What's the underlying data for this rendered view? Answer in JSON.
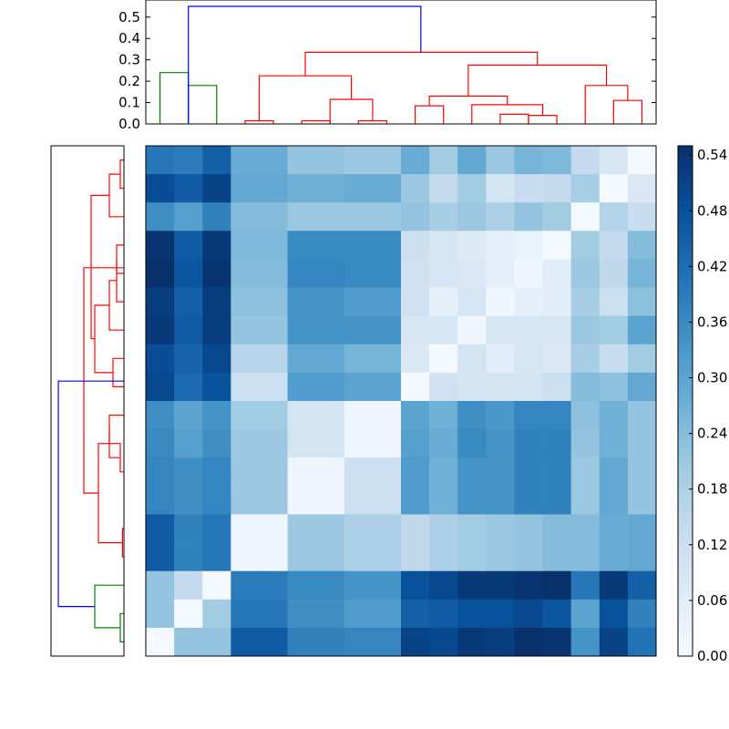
{
  "chart_data": {
    "type": "heatmap",
    "n": 18,
    "colormap": "Blues",
    "grid": false,
    "top_dendrogram": {
      "yticks": [
        "0.0",
        "0.1",
        "0.2",
        "0.3",
        "0.4",
        "0.5"
      ],
      "ylim": [
        0,
        0.58
      ],
      "links": [
        {
          "x": [
            1,
            2
          ],
          "h": 0.24,
          "color": "#008000"
        },
        {
          "x": [
            2,
            3
          ],
          "h": 0.18,
          "color": "#008000"
        },
        {
          "x": [
            4,
            5
          ],
          "h": 0.015,
          "color": "#ff0000"
        },
        {
          "x": [
            6,
            7
          ],
          "h": 0.015,
          "color": "#ff0000"
        },
        {
          "x": [
            8,
            9
          ],
          "h": 0.015,
          "color": "#ff0000"
        },
        {
          "x": [
            7,
            8.5
          ],
          "h": 0.115,
          "color": "#ff0000"
        },
        {
          "x": [
            4.5,
            7.75
          ],
          "h": 0.225,
          "color": "#ff0000"
        },
        {
          "x": [
            10,
            11
          ],
          "h": 0.085,
          "color": "#ff0000"
        },
        {
          "x": [
            13,
            14
          ],
          "h": 0.045,
          "color": "#ff0000"
        },
        {
          "x": [
            14,
            15
          ],
          "h": 0.04,
          "color": "#ff0000"
        },
        {
          "x": [
            12,
            14.5
          ],
          "h": 0.09,
          "color": "#ff0000"
        },
        {
          "x": [
            10.5,
            13.25
          ],
          "h": 0.13,
          "color": "#ff0000"
        },
        {
          "x": [
            17,
            18
          ],
          "h": 0.11,
          "color": "#ff0000"
        },
        {
          "x": [
            16,
            17.5
          ],
          "h": 0.18,
          "color": "#ff0000"
        },
        {
          "x": [
            11.875,
            16.75
          ],
          "h": 0.275,
          "color": "#ff0000"
        },
        {
          "x": [
            6.125,
            14.3125
          ],
          "h": 0.335,
          "color": "#ff0000"
        },
        {
          "x": [
            2,
            10.2
          ],
          "h": 0.55,
          "color": "#0000ff"
        }
      ]
    },
    "left_dendrogram": {
      "links": [
        {
          "y": [
            18,
            17
          ],
          "h": 0.005,
          "color": "#008000"
        },
        {
          "y": [
            17.5,
            16
          ],
          "h": 0.04,
          "color": "#008000"
        },
        {
          "y": [
            1,
            2
          ],
          "h": 0.005,
          "color": "#ff0000"
        },
        {
          "y": [
            1.5,
            3
          ],
          "h": 0.02,
          "color": "#ff0000"
        },
        {
          "y": [
            4,
            5
          ],
          "h": 0.01,
          "color": "#ff0000"
        },
        {
          "y": [
            4.5,
            6
          ],
          "h": 0.01,
          "color": "#ff0000"
        },
        {
          "y": [
            5.25,
            7
          ],
          "h": 0.02,
          "color": "#ff0000"
        },
        {
          "y": [
            8,
            9
          ],
          "h": 0.015,
          "color": "#ff0000"
        },
        {
          "y": [
            6.125,
            8.5
          ],
          "h": 0.04,
          "color": "#ff0000"
        },
        {
          "y": [
            2.25,
            7.3
          ],
          "h": 0.045,
          "color": "#ff0000"
        },
        {
          "y": [
            10,
            11
          ],
          "h": 0.02,
          "color": "#ff0000"
        },
        {
          "y": [
            11,
            12
          ],
          "h": 0.005,
          "color": "#ff0000"
        },
        {
          "y": [
            10.5,
            11.5
          ],
          "h": 0.02,
          "color": "#ff0000"
        },
        {
          "y": [
            14,
            15
          ],
          "h": 0.002,
          "color": "#ff0000"
        },
        {
          "y": [
            11,
            14.5
          ],
          "h": 0.035,
          "color": "#ff0000"
        },
        {
          "y": [
            4.8,
            12.75
          ],
          "h": 0.055,
          "color": "#ff0000"
        },
        {
          "y": [
            8.8,
            16.75
          ],
          "h": 0.09,
          "color": "#0000ff"
        }
      ]
    },
    "colorbar": {
      "ticks": [
        "0.00",
        "0.06",
        "0.12",
        "0.18",
        "0.24",
        "0.30",
        "0.36",
        "0.42",
        "0.48",
        "0.54"
      ],
      "range": [
        0,
        0.55
      ]
    },
    "matrix": [
      [
        0.4,
        0.39,
        0.45,
        0.28,
        0.28,
        0.22,
        0.22,
        0.21,
        0.21,
        0.28,
        0.2,
        0.29,
        0.21,
        0.26,
        0.25,
        0.14,
        0.09,
        0.01
      ],
      [
        0.49,
        0.46,
        0.51,
        0.29,
        0.29,
        0.27,
        0.27,
        0.28,
        0.28,
        0.21,
        0.14,
        0.2,
        0.1,
        0.13,
        0.14,
        0.19,
        0.01,
        0.08
      ],
      [
        0.35,
        0.31,
        0.38,
        0.24,
        0.24,
        0.21,
        0.21,
        0.21,
        0.21,
        0.22,
        0.19,
        0.21,
        0.18,
        0.22,
        0.2,
        0.01,
        0.17,
        0.13
      ],
      [
        0.54,
        0.46,
        0.53,
        0.25,
        0.25,
        0.36,
        0.36,
        0.36,
        0.36,
        0.12,
        0.09,
        0.07,
        0.05,
        0.04,
        0.01,
        0.2,
        0.14,
        0.24
      ],
      [
        0.55,
        0.47,
        0.54,
        0.24,
        0.24,
        0.37,
        0.37,
        0.36,
        0.36,
        0.11,
        0.09,
        0.08,
        0.05,
        0.02,
        0.06,
        0.21,
        0.15,
        0.26
      ],
      [
        0.52,
        0.45,
        0.52,
        0.23,
        0.23,
        0.34,
        0.34,
        0.32,
        0.32,
        0.11,
        0.05,
        0.09,
        0.02,
        0.05,
        0.06,
        0.19,
        0.12,
        0.23
      ],
      [
        0.53,
        0.46,
        0.52,
        0.22,
        0.22,
        0.34,
        0.34,
        0.34,
        0.34,
        0.09,
        0.09,
        0.02,
        0.09,
        0.09,
        0.09,
        0.21,
        0.2,
        0.3
      ],
      [
        0.49,
        0.44,
        0.5,
        0.16,
        0.16,
        0.29,
        0.29,
        0.26,
        0.26,
        0.08,
        0.01,
        0.1,
        0.06,
        0.09,
        0.08,
        0.19,
        0.13,
        0.2
      ],
      [
        0.5,
        0.43,
        0.48,
        0.12,
        0.12,
        0.32,
        0.32,
        0.3,
        0.3,
        0.01,
        0.11,
        0.1,
        0.1,
        0.1,
        0.12,
        0.24,
        0.23,
        0.29
      ],
      [
        0.35,
        0.3,
        0.34,
        0.2,
        0.2,
        0.1,
        0.1,
        0.02,
        0.02,
        0.3,
        0.27,
        0.35,
        0.33,
        0.37,
        0.37,
        0.23,
        0.27,
        0.22
      ],
      [
        0.36,
        0.31,
        0.35,
        0.21,
        0.21,
        0.1,
        0.1,
        0.02,
        0.02,
        0.31,
        0.28,
        0.36,
        0.34,
        0.38,
        0.38,
        0.22,
        0.27,
        0.22
      ],
      [
        0.37,
        0.35,
        0.37,
        0.21,
        0.21,
        0.02,
        0.02,
        0.12,
        0.12,
        0.32,
        0.27,
        0.34,
        0.34,
        0.38,
        0.38,
        0.21,
        0.29,
        0.22
      ],
      [
        0.37,
        0.35,
        0.37,
        0.21,
        0.21,
        0.02,
        0.02,
        0.12,
        0.12,
        0.32,
        0.27,
        0.34,
        0.34,
        0.38,
        0.38,
        0.21,
        0.29,
        0.22
      ],
      [
        0.46,
        0.38,
        0.4,
        0.02,
        0.02,
        0.21,
        0.21,
        0.18,
        0.18,
        0.15,
        0.18,
        0.2,
        0.21,
        0.22,
        0.24,
        0.24,
        0.28,
        0.29
      ],
      [
        0.46,
        0.38,
        0.4,
        0.02,
        0.02,
        0.21,
        0.21,
        0.18,
        0.18,
        0.15,
        0.18,
        0.2,
        0.21,
        0.22,
        0.24,
        0.24,
        0.28,
        0.29
      ],
      [
        0.22,
        0.14,
        0.01,
        0.39,
        0.39,
        0.36,
        0.36,
        0.34,
        0.34,
        0.48,
        0.5,
        0.53,
        0.53,
        0.54,
        0.55,
        0.4,
        0.53,
        0.45
      ],
      [
        0.22,
        0.01,
        0.2,
        0.4,
        0.4,
        0.35,
        0.35,
        0.32,
        0.32,
        0.45,
        0.46,
        0.48,
        0.48,
        0.5,
        0.47,
        0.3,
        0.48,
        0.38
      ],
      [
        0.01,
        0.22,
        0.22,
        0.46,
        0.46,
        0.38,
        0.38,
        0.37,
        0.37,
        0.51,
        0.5,
        0.53,
        0.52,
        0.55,
        0.54,
        0.34,
        0.51,
        0.41
      ]
    ]
  }
}
